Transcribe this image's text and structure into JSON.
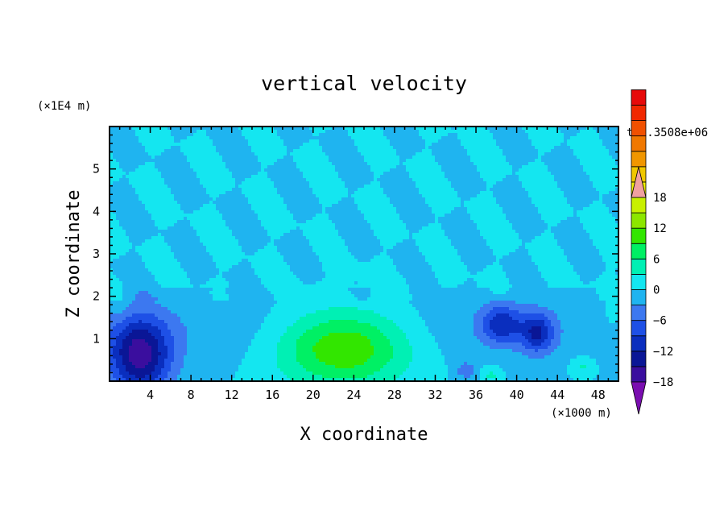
{
  "chart_data": {
    "type": "heatmap",
    "title": "vertical velocity",
    "xlabel": "X coordinate",
    "ylabel": "Z coordinate",
    "x_unit": "(×1000 m)",
    "y_unit": "(×1E4 m)",
    "time_label": "t=2.3508e+06",
    "xlim": [
      0,
      50
    ],
    "ylim": [
      0,
      6
    ],
    "x_ticks": [
      4,
      8,
      12,
      16,
      20,
      24,
      28,
      32,
      36,
      40,
      44,
      48
    ],
    "y_ticks": [
      1,
      2,
      3,
      4,
      5
    ],
    "colorbar": {
      "min": -21,
      "max": 21,
      "step": 3,
      "tick_values": [
        18,
        12,
        6,
        0,
        -6,
        -12,
        -18
      ],
      "colors": [
        "#7a0eb0",
        "#3a0e9e",
        "#0a1696",
        "#0a2ebe",
        "#1e50e6",
        "#3c78f0",
        "#1fb4f0",
        "#14e6f0",
        "#00f0b4",
        "#00f064",
        "#32e600",
        "#8ce600",
        "#c8f000",
        "#f0f000",
        "#f0c800",
        "#f09600",
        "#f07800",
        "#f05000",
        "#f02800",
        "#e60a0a",
        "#f0a0a0"
      ]
    },
    "grid": false,
    "features": [
      {
        "x": 3,
        "z": 0.6,
        "value": -16,
        "sx": 3.0,
        "sz": 0.9
      },
      {
        "x": 23,
        "z": 0.8,
        "value": 13,
        "sx": 6.5,
        "sz": 0.9
      },
      {
        "x": 38.5,
        "z": 1.35,
        "value": -10,
        "sx": 2.0,
        "sz": 0.45
      },
      {
        "x": 42,
        "z": 1.15,
        "value": -11,
        "sx": 1.6,
        "sz": 0.45
      },
      {
        "x": 35,
        "z": 0.25,
        "value": -5,
        "sx": 1.0,
        "sz": 0.2
      },
      {
        "x": 37.5,
        "z": 0.15,
        "value": 4,
        "sx": 1.0,
        "sz": 0.2
      },
      {
        "x": 46.5,
        "z": 0.35,
        "value": 4,
        "sx": 1.2,
        "sz": 0.25
      },
      {
        "x": 49.5,
        "z": 1.7,
        "value": 3,
        "sx": 1.0,
        "sz": 0.5
      },
      {
        "x": 1,
        "z": 1.8,
        "value": 2,
        "sx": 1.0,
        "sz": 0.4
      }
    ]
  }
}
